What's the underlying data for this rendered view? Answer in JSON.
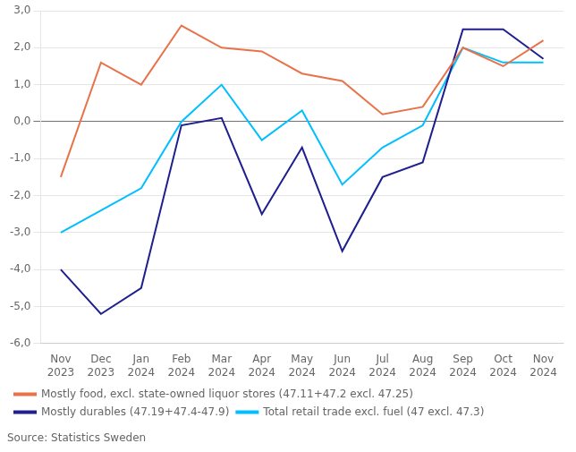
{
  "chart_data": {
    "type": "line",
    "categories": [
      "Nov\n2023",
      "Dec\n2023",
      "Jan\n2024",
      "Feb\n2024",
      "Mar\n2024",
      "Apr\n2024",
      "May\n2024",
      "Jun\n2024",
      "Jul\n2024",
      "Aug\n2024",
      "Sep\n2024",
      "Oct\n2024",
      "Nov\n2024"
    ],
    "series": [
      {
        "name": "Mostly food, excl. state-owned liquor stores (47.11+47.2 excl. 47.25)",
        "color": "#E8734A",
        "values": [
          -1.5,
          1.6,
          1.0,
          2.6,
          2.0,
          1.9,
          1.3,
          1.1,
          0.2,
          0.4,
          2.0,
          1.5,
          2.2
        ]
      },
      {
        "name": "Mostly durables (47.19+47.4-47.9)",
        "color": "#1F1F8F",
        "values": [
          -4.0,
          -5.2,
          -4.5,
          -0.1,
          0.1,
          -2.5,
          -0.7,
          -3.5,
          -1.5,
          -1.1,
          2.5,
          2.5,
          1.7
        ]
      },
      {
        "name": "Total retail trade excl. fuel (47 excl. 47.3)",
        "color": "#00BFFF",
        "values": [
          -3.0,
          -2.4,
          -1.8,
          0.0,
          1.0,
          -0.5,
          0.3,
          -1.7,
          -0.7,
          -0.1,
          2.0,
          1.6,
          1.6
        ]
      }
    ],
    "ylim": [
      -6.0,
      3.0
    ],
    "yticks": [
      {
        "value": -6.0,
        "label": "-6,0"
      },
      {
        "value": -5.0,
        "label": "-5,0"
      },
      {
        "value": -4.0,
        "label": "-4,0"
      },
      {
        "value": -3.0,
        "label": "-3,0"
      },
      {
        "value": -2.0,
        "label": "-2,0"
      },
      {
        "value": -1.0,
        "label": "-1,0"
      },
      {
        "value": 0.0,
        "label": "0,0"
      },
      {
        "value": 1.0,
        "label": "1,0"
      },
      {
        "value": 2.0,
        "label": "2,0"
      },
      {
        "value": 3.0,
        "label": "3,0"
      }
    ],
    "grid": true,
    "legend": "bottom",
    "source": "Source: Statistics Sweden"
  }
}
